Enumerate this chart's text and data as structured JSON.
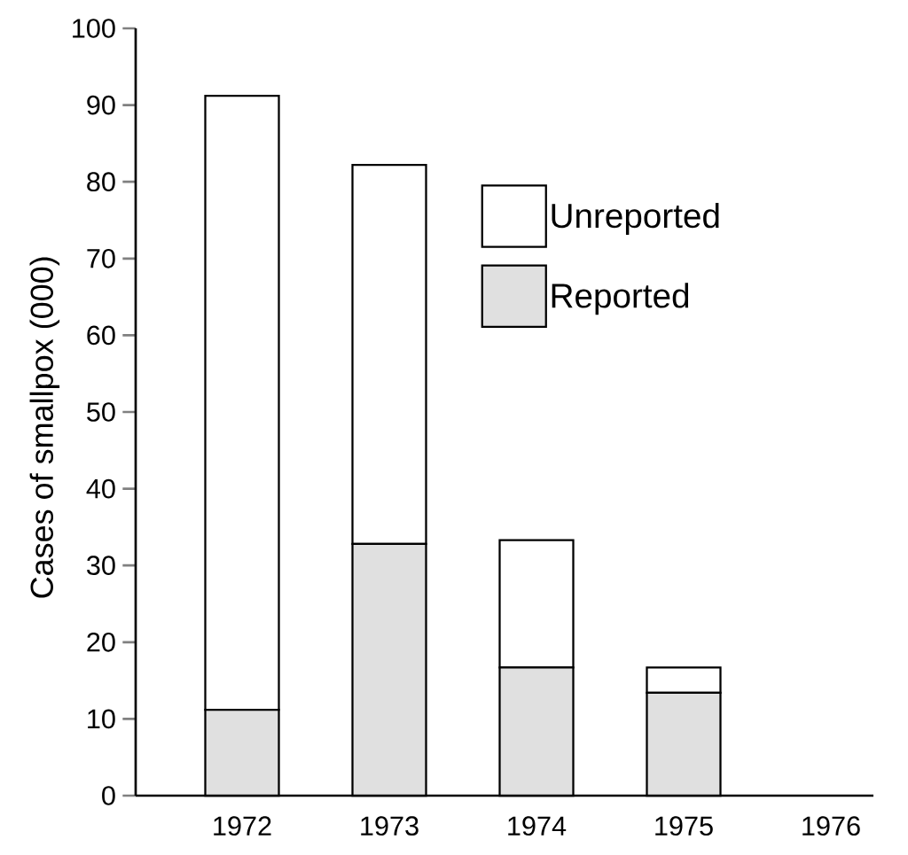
{
  "chart_data": {
    "type": "bar",
    "stacked": true,
    "ylabel": "Cases of smallpox (000)",
    "categories": [
      "1972",
      "1973",
      "1974",
      "1975",
      "1976"
    ],
    "series": [
      {
        "name": "Reported",
        "color": "#e0e0e0",
        "values": [
          11.2,
          32.8,
          16.7,
          13.4,
          0
        ]
      },
      {
        "name": "Unreported",
        "color": "#ffffff",
        "values": [
          80.0,
          49.4,
          16.6,
          3.3,
          0
        ]
      }
    ],
    "ylim": [
      0,
      100
    ],
    "yticks": [
      0,
      10,
      20,
      30,
      40,
      50,
      60,
      70,
      80,
      90,
      100
    ],
    "legend": "top right"
  }
}
